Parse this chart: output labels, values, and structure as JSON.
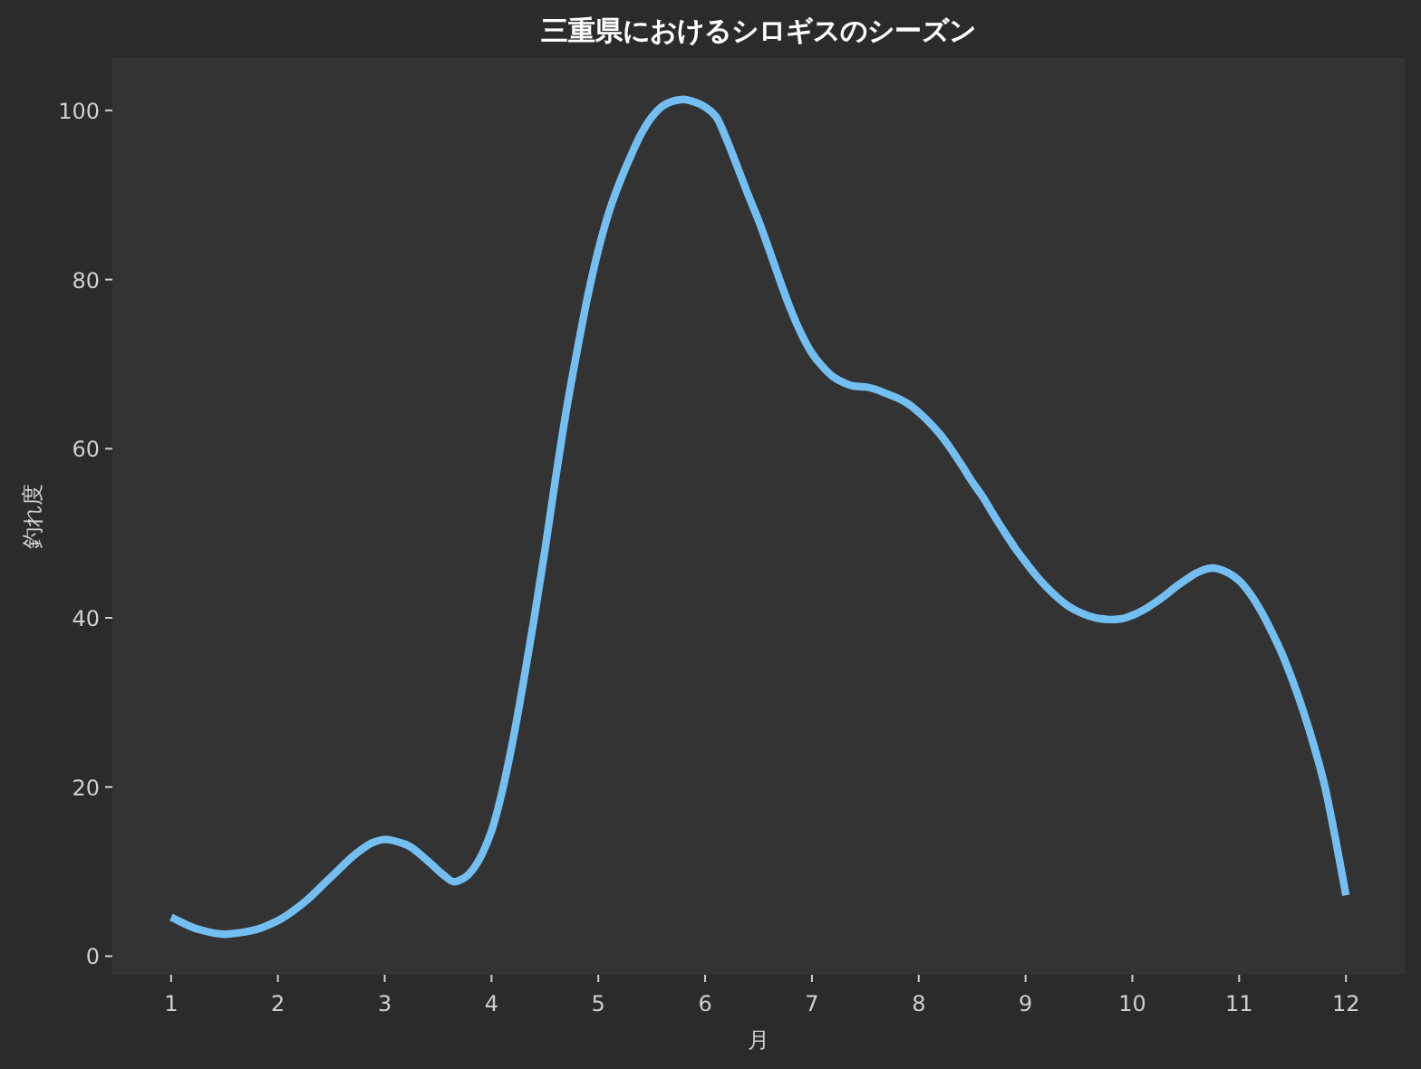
{
  "chart_data": {
    "type": "line",
    "title": "三重県におけるシロギスのシーズン",
    "xlabel": "月",
    "ylabel": "釣れ度",
    "series": [
      {
        "color": "#74bff2",
        "x": [
          1.0,
          1.25,
          1.5,
          1.75,
          2.0,
          2.25,
          2.5,
          2.75,
          2.9,
          3.0,
          3.2,
          3.4,
          3.55,
          3.65,
          3.75,
          3.85,
          4.0,
          4.1,
          4.2,
          4.3,
          4.4,
          4.5,
          4.6,
          4.7,
          4.8,
          4.9,
          5.0,
          5.1,
          5.2,
          5.3,
          5.4,
          5.5,
          5.6,
          5.7,
          5.8,
          5.9,
          6.0,
          6.1,
          6.2,
          6.3,
          6.4,
          6.5,
          6.6,
          6.7,
          6.8,
          6.9,
          7.0,
          7.1,
          7.2,
          7.3,
          7.4,
          7.5,
          7.6,
          7.7,
          7.8,
          7.9,
          8.0,
          8.1,
          8.2,
          8.3,
          8.4,
          8.5,
          8.6,
          8.7,
          8.8,
          8.9,
          9.0,
          9.1,
          9.2,
          9.3,
          9.4,
          9.5,
          9.6,
          9.7,
          9.8,
          9.9,
          10.0,
          10.1,
          10.2,
          10.3,
          10.4,
          10.5,
          10.6,
          10.7,
          10.75,
          10.8,
          10.9,
          11.0,
          11.1,
          11.2,
          11.3,
          11.4,
          11.5,
          11.6,
          11.7,
          11.8,
          11.9,
          12.0
        ],
        "values": [
          4.6,
          3.2,
          2.6,
          3.0,
          4.2,
          6.4,
          9.4,
          12.3,
          13.5,
          13.8,
          13.2,
          11.3,
          9.6,
          8.8,
          9.3,
          10.7,
          14.8,
          19.5,
          25.5,
          32.5,
          40.0,
          48.0,
          56.5,
          64.5,
          71.5,
          78.0,
          83.5,
          88.0,
          91.5,
          94.5,
          97.2,
          99.2,
          100.5,
          101.1,
          101.3,
          101.0,
          100.4,
          99.3,
          96.6,
          93.4,
          90.1,
          87.0,
          83.5,
          79.9,
          76.5,
          73.6,
          71.3,
          69.7,
          68.5,
          67.8,
          67.4,
          67.3,
          67.0,
          66.5,
          66.0,
          65.3,
          64.3,
          63.1,
          61.7,
          60.0,
          58.1,
          56.1,
          54.3,
          52.2,
          50.2,
          48.3,
          46.6,
          45.0,
          43.6,
          42.4,
          41.4,
          40.7,
          40.2,
          39.9,
          39.8,
          39.9,
          40.3,
          40.9,
          41.7,
          42.6,
          43.6,
          44.5,
          45.3,
          45.8,
          45.9,
          45.8,
          45.3,
          44.4,
          42.9,
          40.9,
          38.5,
          35.8,
          32.6,
          29.0,
          24.9,
          20.2,
          14.0,
          7.2
        ]
      }
    ],
    "xlim": [
      0.45,
      12.55
    ],
    "ylim": [
      -2.2,
      106.2
    ],
    "xticks": [
      1,
      2,
      3,
      4,
      5,
      6,
      7,
      8,
      9,
      10,
      11,
      12
    ],
    "yticks": [
      0,
      20,
      40,
      60,
      80,
      100
    ],
    "line_style": "solid"
  }
}
